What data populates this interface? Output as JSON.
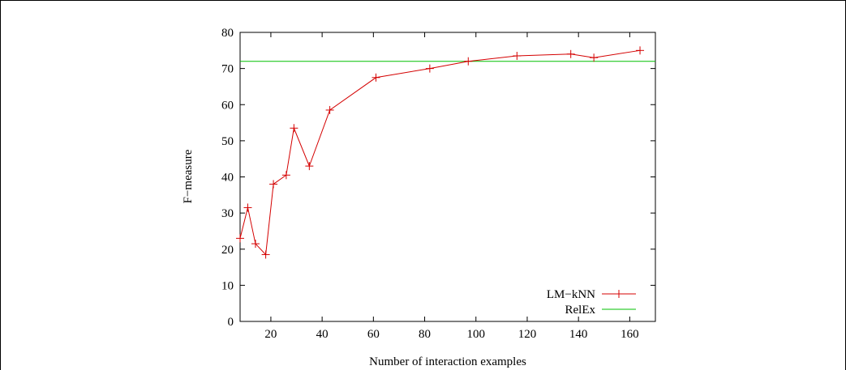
{
  "chart_data": {
    "type": "line",
    "title": "",
    "xlabel": "Number of interaction examples",
    "ylabel": "F−measure",
    "xlim": [
      8,
      170
    ],
    "ylim": [
      0,
      80
    ],
    "xticks": [
      20,
      40,
      60,
      80,
      100,
      120,
      140,
      160
    ],
    "yticks": [
      0,
      10,
      20,
      30,
      40,
      50,
      60,
      70,
      80
    ],
    "grid": false,
    "legend_position": "bottom-right",
    "series": [
      {
        "name": "LM−kNN",
        "color": "#d40000",
        "marker": "plus",
        "x": [
          8,
          11,
          14,
          18,
          21,
          26,
          29,
          35,
          43,
          61,
          82,
          97,
          116,
          137,
          146,
          164
        ],
        "y": [
          23,
          31.5,
          21.5,
          18.5,
          38,
          40.5,
          53.5,
          43,
          58.5,
          67.5,
          70,
          72,
          73.5,
          74,
          73,
          75
        ]
      },
      {
        "name": "RelEx",
        "color": "#00c000",
        "marker": "none",
        "constant": 72
      }
    ]
  }
}
